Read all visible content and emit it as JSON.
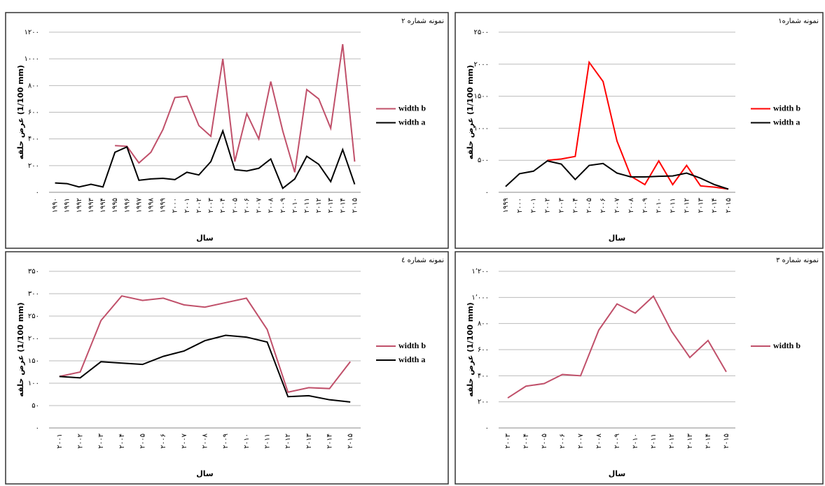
{
  "chart_data": [
    {
      "type": "line",
      "title": "نمونه شماره ۲",
      "ylabel": "عرض حلقه (1/100 mm)",
      "xlabel": "سال",
      "categories": [
        "۱۹۹۰",
        "۱۹۹۱",
        "۱۹۹۲",
        "۱۹۹۳",
        "۱۹۹۴",
        "۱۹۹۵",
        "۱۹۹۶",
        "۱۹۹۷",
        "۱۹۹۸",
        "۱۹۹۹",
        "۲۰۰۰",
        "۲۰۰۱",
        "۲۰۰۲",
        "۲۰۰۳",
        "۲۰۰۴",
        "۲۰۰۵",
        "۲۰۰۶",
        "۲۰۰۷",
        "۲۰۰۸",
        "۲۰۰۹",
        "۲۰۱۰",
        "۲۰۱۱",
        "۲۰۱۲",
        "۲۰۱۳",
        "۲۰۱۴",
        "۲۰۱۵"
      ],
      "series": [
        {
          "name": "width b",
          "color": "#c0506a",
          "values": [
            null,
            null,
            null,
            null,
            null,
            350,
            345,
            220,
            300,
            470,
            710,
            720,
            500,
            420,
            1000,
            230,
            590,
            400,
            830,
            460,
            150,
            770,
            700,
            480,
            1110,
            230
          ]
        },
        {
          "name": "width a",
          "color": "#000000",
          "values": [
            70,
            65,
            40,
            60,
            40,
            300,
            340,
            90,
            100,
            105,
            95,
            150,
            130,
            230,
            460,
            170,
            160,
            180,
            250,
            30,
            100,
            270,
            210,
            80,
            320,
            60
          ]
        }
      ],
      "ylim": [
        0,
        1200
      ],
      "yticks": [
        {
          "value": 0,
          "label": "۰"
        },
        {
          "value": 200,
          "label": "۲۰۰"
        },
        {
          "value": 400,
          "label": "۴۰۰"
        },
        {
          "value": 600,
          "label": "۶۰۰"
        },
        {
          "value": 800,
          "label": "۸۰۰"
        },
        {
          "value": 1000,
          "label": "۱۰۰۰"
        },
        {
          "value": 1200,
          "label": "۱۲۰۰"
        }
      ],
      "grid": true
    },
    {
      "type": "line",
      "title": "نمونه شماره۱",
      "ylabel": "عرض حلقه (1/100 mm)",
      "xlabel": "سال",
      "categories": [
        "۱۹۹۹",
        "۲۰۰۰",
        "۲۰۰۱",
        "۲۰۰۲",
        "۲۰۰۳",
        "۲۰۰۴",
        "۲۰۰۵",
        "۲۰۰۶",
        "۲۰۰۷",
        "۲۰۰۸",
        "۲۰۰۹",
        "۲۰۱۰",
        "۲۰۱۱",
        "۲۰۱۲",
        "۲۰۱۳",
        "۲۰۱۴",
        "۲۰۱۵"
      ],
      "series": [
        {
          "name": "width b",
          "color": "#ff0000",
          "values": [
            null,
            null,
            null,
            500,
            520,
            560,
            2030,
            1730,
            800,
            250,
            120,
            490,
            120,
            420,
            100,
            80,
            50
          ]
        },
        {
          "name": "width a",
          "color": "#000000",
          "values": [
            90,
            290,
            330,
            490,
            440,
            200,
            420,
            450,
            300,
            240,
            240,
            250,
            255,
            300,
            220,
            120,
            50
          ]
        }
      ],
      "ylim": [
        0,
        2500
      ],
      "yticks": [
        {
          "value": 0,
          "label": "۰"
        },
        {
          "value": 500,
          "label": "۵۰۰"
        },
        {
          "value": 1000,
          "label": "۱۰۰۰"
        },
        {
          "value": 1500,
          "label": "۱۵۰۰"
        },
        {
          "value": 2000,
          "label": "۲۰۰۰"
        },
        {
          "value": 2500,
          "label": "۲۵۰۰"
        }
      ],
      "grid": true
    },
    {
      "type": "line",
      "title": "نمونه شماره ٤",
      "ylabel": "عرض حلقه (1/100 mm)",
      "xlabel": "سال",
      "categories": [
        "۲۰۰۱",
        "۲۰۰۲",
        "۲۰۰۳",
        "۲۰۰۴",
        "۲۰۰۵",
        "۲۰۰۶",
        "۲۰۰۷",
        "۲۰۰۸",
        "۲۰۰۹",
        "۲۰۱۰",
        "۲۰۱۱",
        "۲۰۱۲",
        "۲۰۱۳",
        "۲۰۱۴",
        "۲۰۱۵"
      ],
      "series": [
        {
          "name": "width b",
          "color": "#c0506a",
          "values": [
            115,
            125,
            240,
            295,
            285,
            290,
            275,
            270,
            280,
            290,
            220,
            80,
            90,
            88,
            148
          ]
        },
        {
          "name": "width a",
          "color": "#000000",
          "values": [
            115,
            112,
            148,
            145,
            142,
            160,
            172,
            195,
            207,
            203,
            192,
            70,
            72,
            63,
            58
          ]
        }
      ],
      "ylim": [
        0,
        350
      ],
      "yticks": [
        {
          "value": 0,
          "label": "۰"
        },
        {
          "value": 50,
          "label": "۵۰"
        },
        {
          "value": 100,
          "label": "۱۰۰"
        },
        {
          "value": 150,
          "label": "۱۵۰"
        },
        {
          "value": 200,
          "label": "۲۰۰"
        },
        {
          "value": 250,
          "label": "۲۵۰"
        },
        {
          "value": 300,
          "label": "۳۰۰"
        },
        {
          "value": 350,
          "label": "۳۵۰"
        }
      ],
      "grid": true
    },
    {
      "type": "line",
      "title": "نمونه شماره ۳",
      "ylabel": "عرض حلقه (1/100 mm)",
      "xlabel": "سال",
      "categories": [
        "۲۰۰۳",
        "۲۰۰۴",
        "۲۰۰۵",
        "۲۰۰۶",
        "۲۰۰۷",
        "۲۰۰۸",
        "۲۰۰۹",
        "۲۰۱۰",
        "۲۰۱۱",
        "۲۰۱۲",
        "۲۰۱۳",
        "۲۰۱۴",
        "۲۰۱۵"
      ],
      "series": [
        {
          "name": "width b",
          "color": "#c0506a",
          "values": [
            230,
            320,
            340,
            410,
            400,
            750,
            950,
            880,
            1010,
            740,
            540,
            670,
            430
          ]
        }
      ],
      "ylim": [
        0,
        1200
      ],
      "yticks": [
        {
          "value": 0,
          "label": "۰"
        },
        {
          "value": 200,
          "label": "۲۰۰"
        },
        {
          "value": 400,
          "label": "۴۰۰"
        },
        {
          "value": 600,
          "label": "۶۰۰"
        },
        {
          "value": 800,
          "label": "۸۰۰"
        },
        {
          "value": 1000,
          "label": "۱٬۰۰۰"
        },
        {
          "value": 1200,
          "label": "۱٬۲۰۰"
        }
      ],
      "grid": true
    }
  ]
}
